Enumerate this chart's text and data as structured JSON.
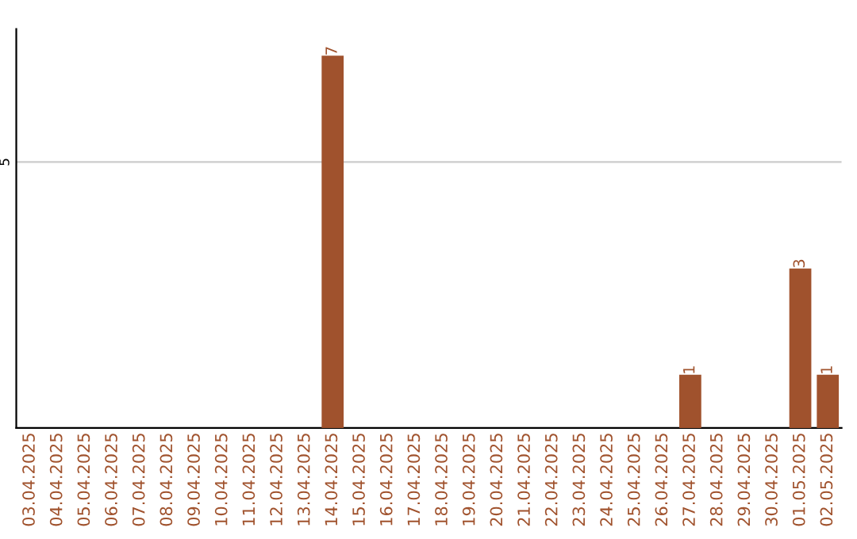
{
  "chart_data": {
    "type": "bar",
    "categories": [
      "03.04.2025",
      "04.04.2025",
      "05.04.2025",
      "06.04.2025",
      "07.04.2025",
      "08.04.2025",
      "09.04.2025",
      "10.04.2025",
      "11.04.2025",
      "12.04.2025",
      "13.04.2025",
      "14.04.2025",
      "15.04.2025",
      "16.04.2025",
      "17.04.2025",
      "18.04.2025",
      "19.04.2025",
      "20.04.2025",
      "21.04.2025",
      "22.04.2025",
      "23.04.2025",
      "24.04.2025",
      "25.04.2025",
      "26.04.2025",
      "27.04.2025",
      "28.04.2025",
      "29.04.2025",
      "30.04.2025",
      "01.05.2025",
      "02.05.2025"
    ],
    "values": [
      0,
      0,
      0,
      0,
      0,
      0,
      0,
      0,
      0,
      0,
      0,
      7,
      0,
      0,
      0,
      0,
      0,
      0,
      0,
      0,
      0,
      0,
      0,
      0,
      1,
      0,
      0,
      0,
      3,
      1
    ],
    "color": "#a0522d",
    "value_labels": [
      null,
      null,
      null,
      null,
      null,
      null,
      null,
      null,
      null,
      null,
      null,
      "7",
      null,
      null,
      null,
      null,
      null,
      null,
      null,
      null,
      null,
      null,
      null,
      null,
      "1",
      null,
      null,
      null,
      "3",
      "1"
    ],
    "ylim": [
      0,
      7.5
    ],
    "yticks": [
      5
    ],
    "grid": "y"
  }
}
